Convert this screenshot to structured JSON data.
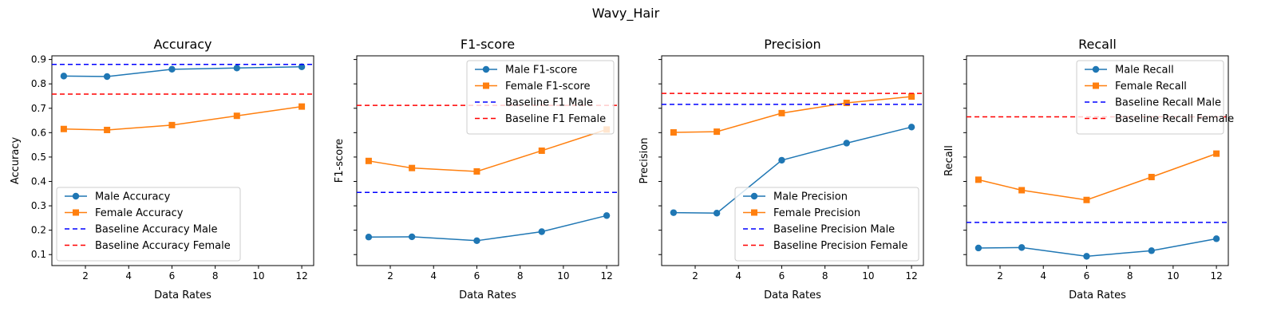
{
  "suptitle": "Wavy_Hair",
  "colors": {
    "male": "#1f77b4",
    "female": "#ff7f0e",
    "baseline_male": "#0000ff",
    "baseline_female": "#ff0000"
  },
  "chart_data": [
    {
      "type": "line",
      "title": "Accuracy",
      "xlabel": "Data Rates",
      "ylabel": "Accuracy",
      "x": [
        1,
        3,
        6,
        9,
        12
      ],
      "xlim": [
        0.45,
        12.55
      ],
      "ylim": [
        0.055,
        0.915
      ],
      "xticks": [
        2,
        4,
        6,
        8,
        10,
        12
      ],
      "yticks": [
        0.1,
        0.2,
        0.3,
        0.4,
        0.5,
        0.6,
        0.7,
        0.8,
        0.9
      ],
      "show_ytick_labels": true,
      "legend_position": "lower-left",
      "series": [
        {
          "name": "Male Accuracy",
          "style": "line-circle",
          "color": "#1f77b4",
          "values": [
            0.832,
            0.83,
            0.86,
            0.865,
            0.87
          ]
        },
        {
          "name": "Female Accuracy",
          "style": "line-square",
          "color": "#ff7f0e",
          "values": [
            0.615,
            0.611,
            0.631,
            0.669,
            0.707
          ]
        },
        {
          "name": "Baseline Accuracy Male",
          "style": "hline-dashed",
          "color": "#0000ff",
          "value": 0.88
        },
        {
          "name": "Baseline Accuracy Female",
          "style": "hline-dashed",
          "color": "#ff0000",
          "value": 0.758
        }
      ]
    },
    {
      "type": "line",
      "title": "F1-score",
      "xlabel": "Data Rates",
      "ylabel": "F1-score",
      "x": [
        1,
        3,
        6,
        9,
        12
      ],
      "xlim": [
        0.45,
        12.55
      ],
      "ylim": [
        0.055,
        0.915
      ],
      "xticks": [
        2,
        4,
        6,
        8,
        10,
        12
      ],
      "yticks": [
        0.1,
        0.2,
        0.3,
        0.4,
        0.5,
        0.6,
        0.7,
        0.8,
        0.9
      ],
      "show_ytick_labels": false,
      "legend_position": "upper-right",
      "series": [
        {
          "name": "Male F1-score",
          "style": "line-circle",
          "color": "#1f77b4",
          "values": [
            0.172,
            0.173,
            0.157,
            0.194,
            0.26
          ]
        },
        {
          "name": "Female F1-score",
          "style": "line-square",
          "color": "#ff7f0e",
          "values": [
            0.484,
            0.455,
            0.441,
            0.526,
            0.613
          ]
        },
        {
          "name": "Baseline F1 Male",
          "style": "hline-dashed",
          "color": "#0000ff",
          "value": 0.355
        },
        {
          "name": "Baseline F1 Female",
          "style": "hline-dashed",
          "color": "#ff0000",
          "value": 0.712
        }
      ]
    },
    {
      "type": "line",
      "title": "Precision",
      "xlabel": "Data Rates",
      "ylabel": "Precision",
      "x": [
        1,
        3,
        6,
        9,
        12
      ],
      "xlim": [
        0.45,
        12.55
      ],
      "ylim": [
        0.055,
        0.915
      ],
      "xticks": [
        2,
        4,
        6,
        8,
        10,
        12
      ],
      "yticks": [
        0.1,
        0.2,
        0.3,
        0.4,
        0.5,
        0.6,
        0.7,
        0.8,
        0.9
      ],
      "show_ytick_labels": false,
      "legend_position": "lower-right",
      "series": [
        {
          "name": "Male Precision",
          "style": "line-circle",
          "color": "#1f77b4",
          "values": [
            0.272,
            0.27,
            0.487,
            0.557,
            0.623
          ]
        },
        {
          "name": "Female Precision",
          "style": "line-square",
          "color": "#ff7f0e",
          "values": [
            0.601,
            0.604,
            0.68,
            0.722,
            0.748
          ]
        },
        {
          "name": "Baseline Precision Male",
          "style": "hline-dashed",
          "color": "#0000ff",
          "value": 0.716
        },
        {
          "name": "Baseline Precision Female",
          "style": "hline-dashed",
          "color": "#ff0000",
          "value": 0.761
        }
      ]
    },
    {
      "type": "line",
      "title": "Recall",
      "xlabel": "Data Rates",
      "ylabel": "Recall",
      "x": [
        1,
        3,
        6,
        9,
        12
      ],
      "xlim": [
        0.45,
        12.55
      ],
      "ylim": [
        0.055,
        0.915
      ],
      "xticks": [
        2,
        4,
        6,
        8,
        10,
        12
      ],
      "yticks": [
        0.1,
        0.2,
        0.3,
        0.4,
        0.5,
        0.6,
        0.7,
        0.8,
        0.9
      ],
      "show_ytick_labels": false,
      "legend_position": "upper-right",
      "series": [
        {
          "name": "Male Recall",
          "style": "line-circle",
          "color": "#1f77b4",
          "values": [
            0.127,
            0.129,
            0.093,
            0.116,
            0.165
          ]
        },
        {
          "name": "Female Recall",
          "style": "line-square",
          "color": "#ff7f0e",
          "values": [
            0.407,
            0.364,
            0.324,
            0.418,
            0.514
          ]
        },
        {
          "name": "Baseline Recall Male",
          "style": "hline-dashed",
          "color": "#0000ff",
          "value": 0.232
        },
        {
          "name": "Baseline Recall Female",
          "style": "hline-dashed",
          "color": "#ff0000",
          "value": 0.665
        }
      ]
    }
  ]
}
